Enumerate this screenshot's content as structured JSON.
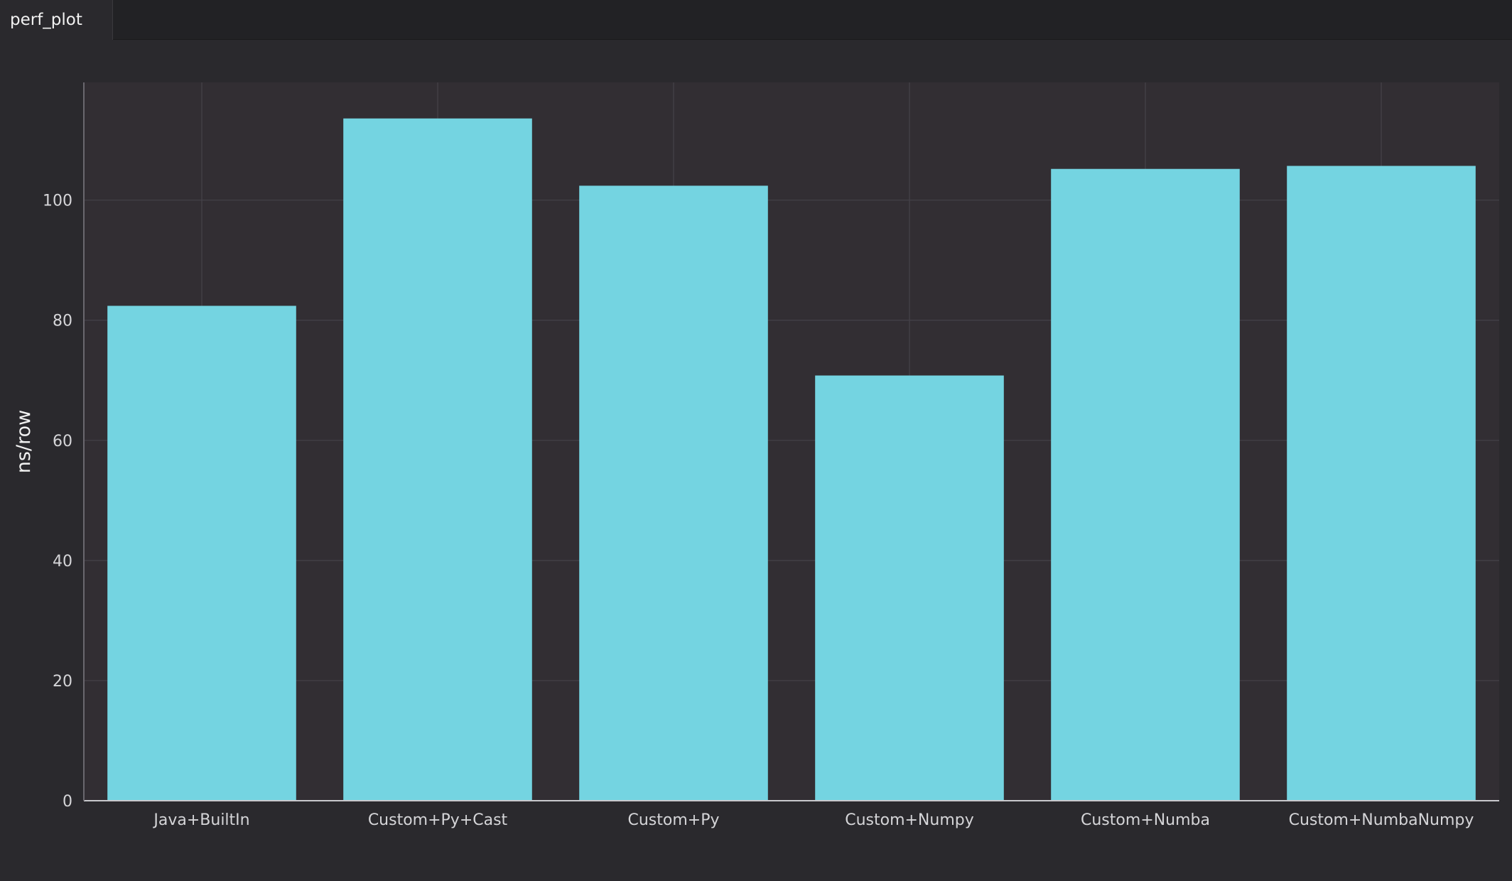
{
  "tab": {
    "label": "perf_plot"
  },
  "colors": {
    "background": "#2a292d",
    "plot_background": "#322e33",
    "grid": "#45424a",
    "bar": "#74d4e1",
    "text": "#d5d5d8"
  },
  "chart_data": {
    "type": "bar",
    "title": "",
    "xlabel": "",
    "ylabel": "ns/row",
    "categories": [
      "Java+BuiltIn",
      "Custom+Py+Cast",
      "Custom+Py",
      "Custom+Numpy",
      "Custom+Numba",
      "Custom+NumbaNumpy"
    ],
    "values": [
      82.4,
      113.6,
      102.4,
      70.8,
      105.2,
      105.7
    ],
    "ylim": [
      0,
      119.6
    ],
    "yticks": [
      0,
      20,
      40,
      60,
      80,
      100
    ],
    "grid": true,
    "legend": "none"
  }
}
